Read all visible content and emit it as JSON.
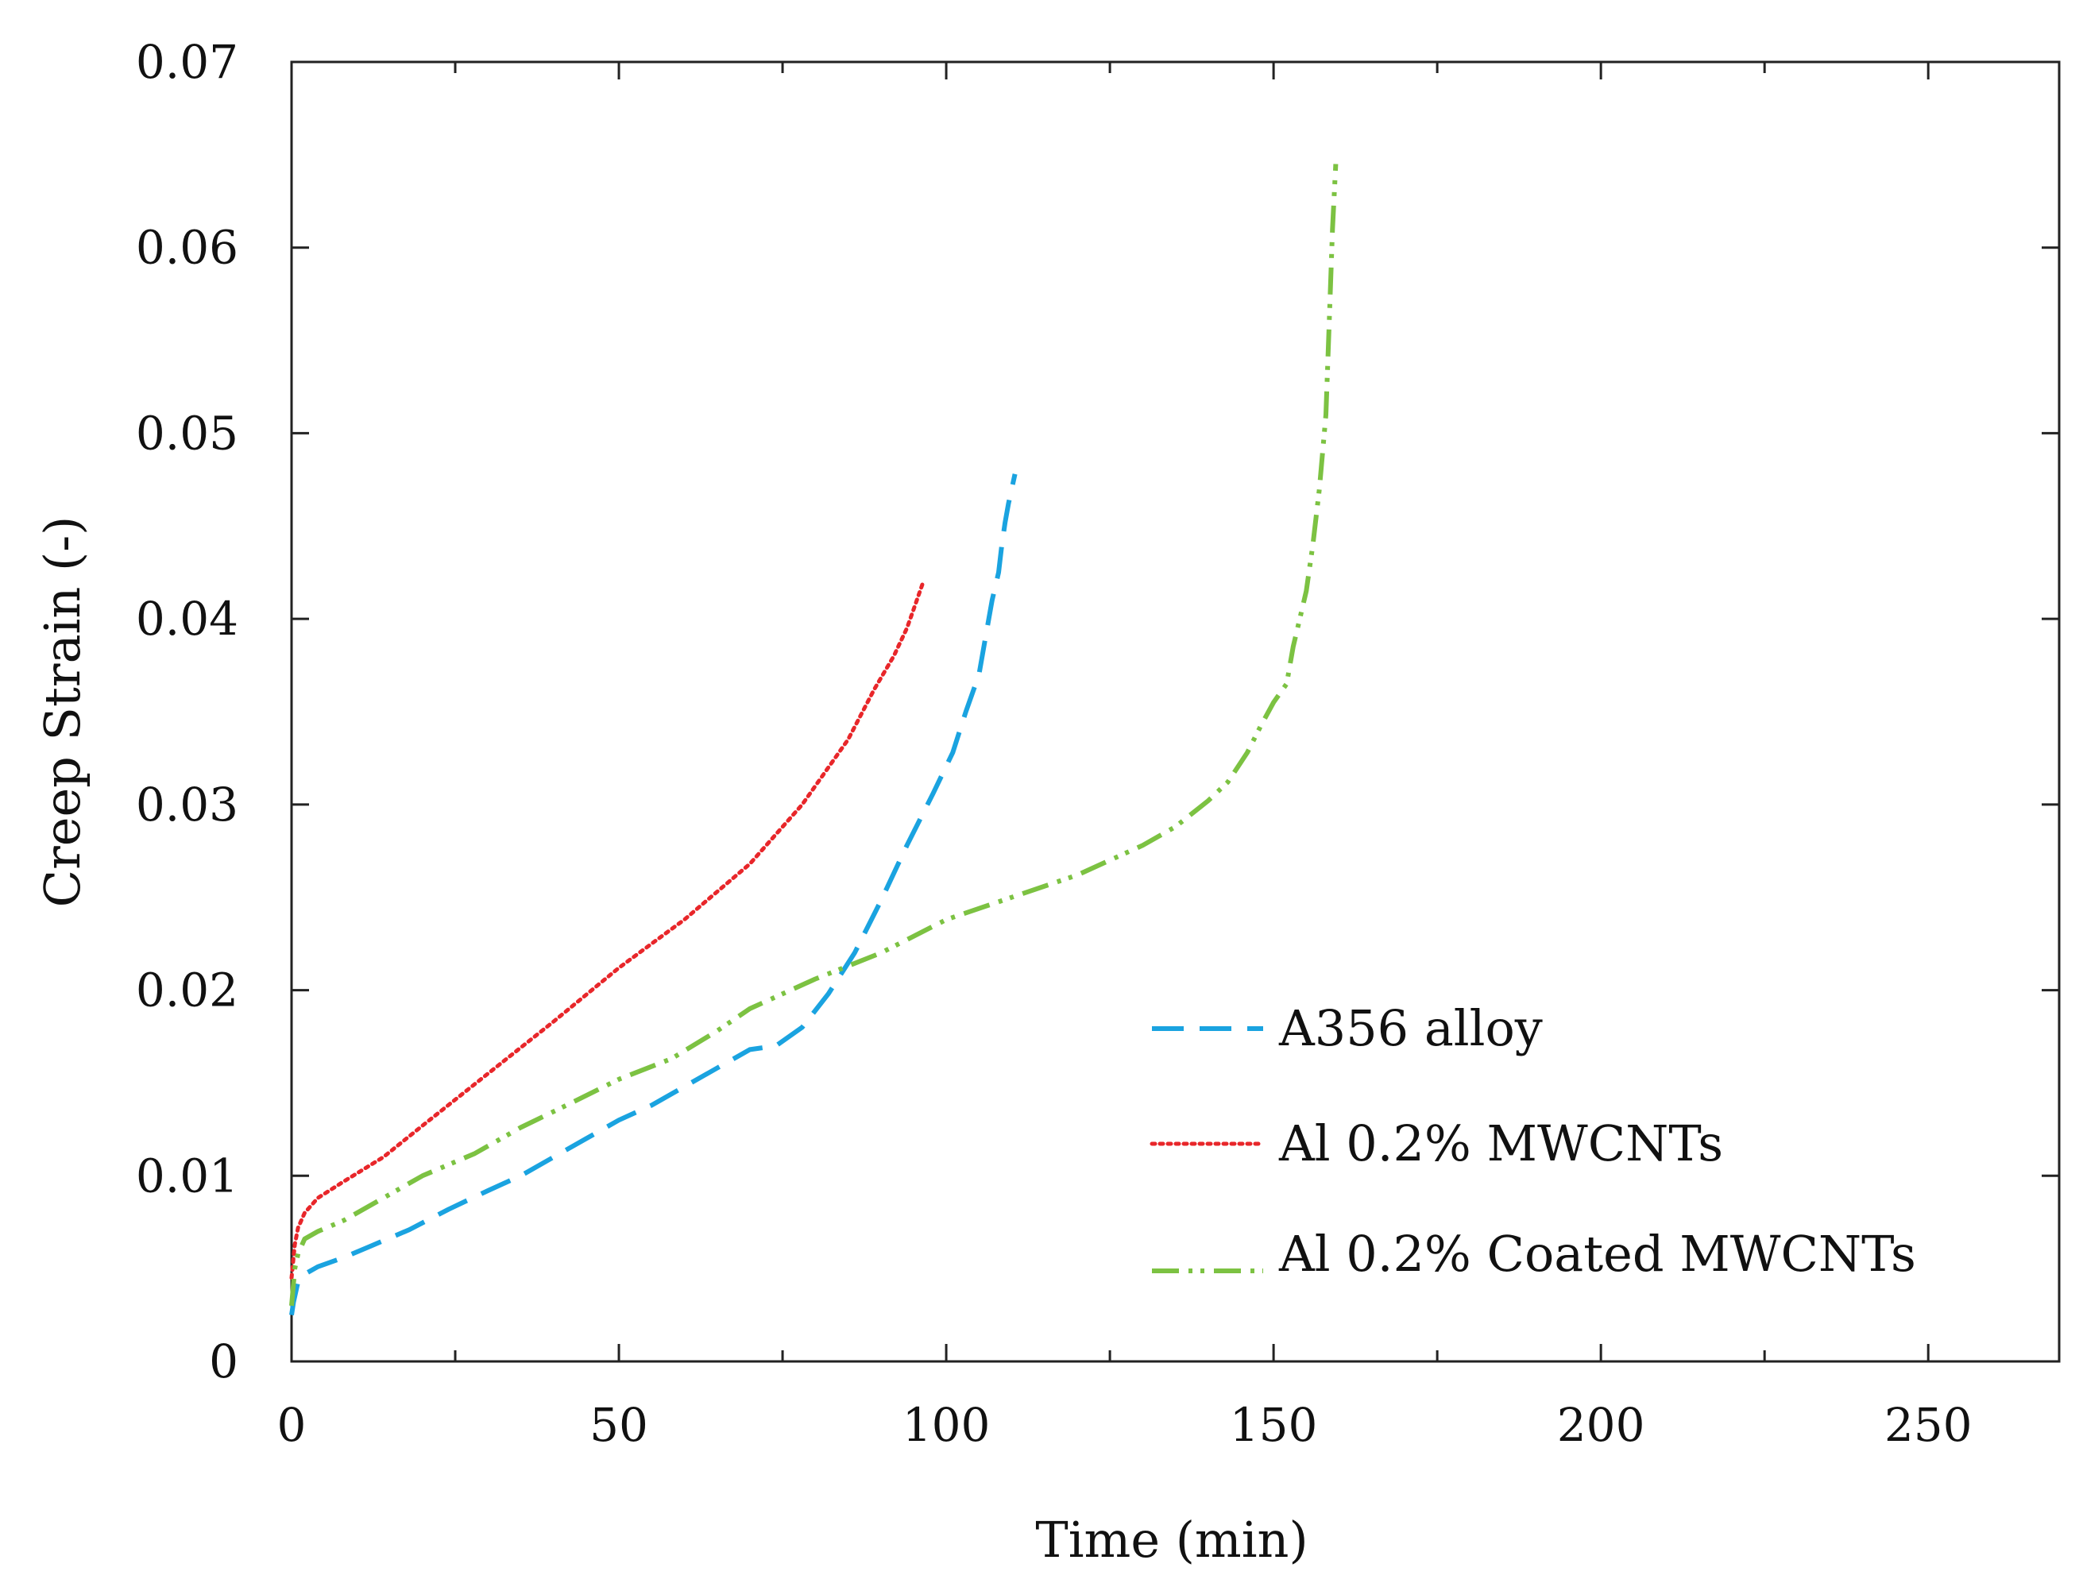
{
  "chart_data": {
    "type": "line",
    "title": "",
    "xlabel": "Time (min)",
    "ylabel": "Creep Strain (-)",
    "xlim": [
      0,
      270
    ],
    "ylim": [
      0,
      0.07
    ],
    "x_ticks": [
      0,
      50,
      100,
      150,
      200,
      250
    ],
    "x_tick_labels": [
      "0",
      "50",
      "100",
      "150",
      "200",
      "250"
    ],
    "y_ticks": [
      0,
      0.01,
      0.02,
      0.03,
      0.04,
      0.05,
      0.06,
      0.07
    ],
    "y_tick_labels": [
      "0",
      "0.01",
      "0.02",
      "0.03",
      "0.04",
      "0.05",
      "0.06",
      "0.07"
    ],
    "grid": false,
    "legend_position": "bottom-right",
    "series": [
      {
        "name": "A356 alloy",
        "style": "dashed",
        "color": "#1aa3e0",
        "x": [
          0,
          0.3,
          1,
          2,
          4,
          8,
          12,
          18,
          24,
          30,
          35,
          40,
          45,
          50,
          55,
          60,
          65,
          70,
          74,
          78,
          82,
          86,
          90,
          94,
          98,
          101,
          103,
          105,
          106,
          107,
          108,
          108.5,
          109,
          109.5,
          110,
          110.5
        ],
        "y": [
          0.0025,
          0.0032,
          0.0043,
          0.0047,
          0.0051,
          0.0056,
          0.0062,
          0.0071,
          0.0082,
          0.0092,
          0.01,
          0.011,
          0.012,
          0.013,
          0.0138,
          0.0148,
          0.0158,
          0.0168,
          0.017,
          0.018,
          0.0198,
          0.022,
          0.0248,
          0.0278,
          0.0306,
          0.0328,
          0.035,
          0.037,
          0.039,
          0.041,
          0.0425,
          0.044,
          0.0452,
          0.0462,
          0.047,
          0.0478
        ]
      },
      {
        "name": "Al 0.2% MWCNTs",
        "style": "dotted",
        "color": "#e8262a",
        "x": [
          0,
          0.5,
          1,
          2,
          4,
          8,
          14,
          20,
          30,
          40,
          50,
          60,
          70,
          78,
          85,
          89,
          92,
          94,
          95,
          96,
          96.5
        ],
        "y": [
          0.0045,
          0.0063,
          0.0072,
          0.008,
          0.0088,
          0.0097,
          0.011,
          0.0127,
          0.0155,
          0.0183,
          0.0212,
          0.0238,
          0.0268,
          0.03,
          0.0335,
          0.0362,
          0.038,
          0.0395,
          0.0405,
          0.0415,
          0.042
        ]
      },
      {
        "name": "Al 0.2% Coated MWCNTs",
        "style": "dash-dot-dot",
        "color": "#7cc242",
        "x": [
          0,
          0.5,
          1,
          2,
          4,
          8,
          14,
          20,
          28,
          35,
          42,
          50,
          58,
          65,
          70,
          80,
          90,
          100,
          110,
          120,
          130,
          135,
          140,
          143,
          146,
          148,
          150,
          152,
          153,
          154,
          155,
          156,
          157,
          158,
          158.5,
          159,
          159.5
        ],
        "y": [
          0.003,
          0.005,
          0.0058,
          0.0066,
          0.007,
          0.0076,
          0.0088,
          0.01,
          0.0112,
          0.0126,
          0.0138,
          0.0152,
          0.0163,
          0.0178,
          0.019,
          0.0206,
          0.022,
          0.0238,
          0.025,
          0.0262,
          0.0278,
          0.0288,
          0.0302,
          0.0312,
          0.0328,
          0.0342,
          0.0355,
          0.0365,
          0.0385,
          0.04,
          0.0415,
          0.044,
          0.047,
          0.051,
          0.056,
          0.061,
          0.0645
        ]
      }
    ]
  }
}
